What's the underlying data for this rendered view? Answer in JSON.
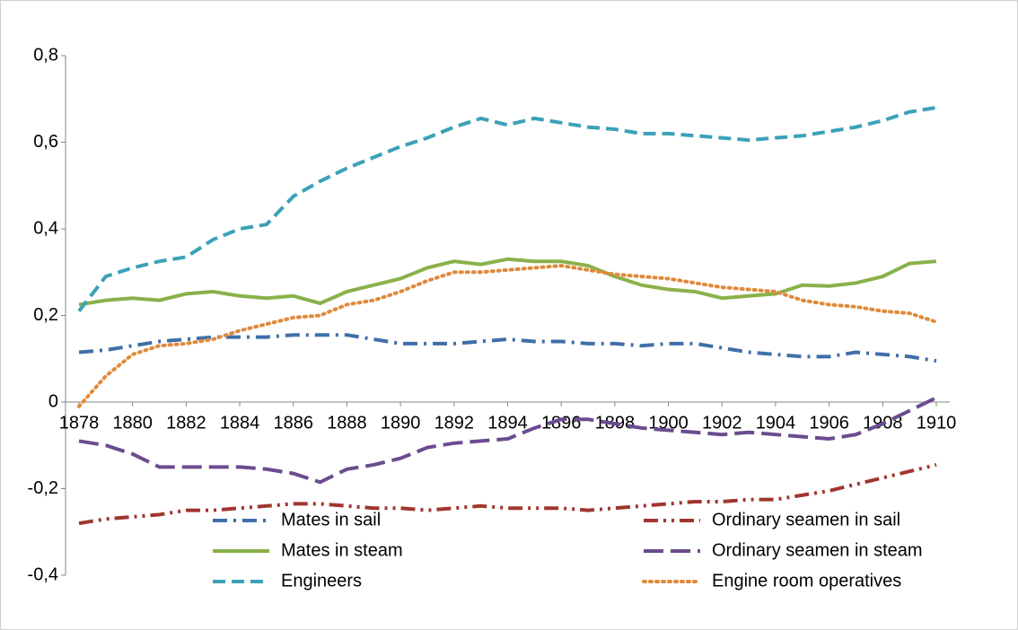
{
  "chart_data": {
    "type": "line",
    "x": [
      1878,
      1879,
      1880,
      1881,
      1882,
      1883,
      1884,
      1885,
      1886,
      1887,
      1888,
      1889,
      1890,
      1891,
      1892,
      1893,
      1894,
      1895,
      1896,
      1897,
      1898,
      1899,
      1900,
      1901,
      1902,
      1903,
      1904,
      1905,
      1906,
      1907,
      1908,
      1909,
      1910
    ],
    "xlim": [
      1878,
      1910
    ],
    "xticks": [
      1878,
      1880,
      1882,
      1884,
      1886,
      1888,
      1890,
      1892,
      1894,
      1896,
      1898,
      1900,
      1902,
      1904,
      1906,
      1908,
      1910
    ],
    "ylim": [
      -0.4,
      0.8
    ],
    "yticks": [
      {
        "value": -0.4,
        "label": "-0,4"
      },
      {
        "value": -0.2,
        "label": "-0,2"
      },
      0,
      {
        "value": 0.2,
        "label": "0,2"
      },
      {
        "value": 0.4,
        "label": "0,4"
      },
      {
        "value": 0.6,
        "label": "0,6"
      },
      {
        "value": 0.8,
        "label": "0,8"
      }
    ],
    "legend": "bottom",
    "series": [
      {
        "name": "Mates in sail",
        "color": "#3f6fa8",
        "style": "dash-dot",
        "values": [
          0.115,
          0.12,
          0.13,
          0.14,
          0.145,
          0.15,
          0.15,
          0.15,
          0.155,
          0.155,
          0.155,
          0.145,
          0.135,
          0.135,
          0.135,
          0.14,
          0.145,
          0.14,
          0.14,
          0.135,
          0.135,
          0.13,
          0.135,
          0.135,
          0.125,
          0.115,
          0.11,
          0.105,
          0.105,
          0.115,
          0.11,
          0.105,
          0.095
        ]
      },
      {
        "name": "Ordinary seamen in sail",
        "color": "#a0362f",
        "style": "dash-dot-dot",
        "values": [
          -0.28,
          -0.27,
          -0.265,
          -0.26,
          -0.25,
          -0.25,
          -0.245,
          -0.24,
          -0.235,
          -0.235,
          -0.24,
          -0.245,
          -0.245,
          -0.25,
          -0.245,
          -0.24,
          -0.245,
          -0.245,
          -0.245,
          -0.25,
          -0.245,
          -0.24,
          -0.235,
          -0.23,
          -0.23,
          -0.225,
          -0.225,
          -0.215,
          -0.205,
          -0.19,
          -0.175,
          -0.16,
          -0.145
        ]
      },
      {
        "name": "Mates in steam",
        "color": "#8ab14a",
        "style": "solid",
        "values": [
          0.225,
          0.235,
          0.24,
          0.235,
          0.25,
          0.255,
          0.245,
          0.24,
          0.245,
          0.228,
          0.255,
          0.27,
          0.285,
          0.31,
          0.325,
          0.318,
          0.33,
          0.325,
          0.325,
          0.315,
          0.29,
          0.27,
          0.26,
          0.255,
          0.24,
          0.245,
          0.25,
          0.27,
          0.268,
          0.275,
          0.29,
          0.32,
          0.325
        ]
      },
      {
        "name": "Ordinary seamen in steam",
        "color": "#6b4c8f",
        "style": "long-dash",
        "values": [
          -0.09,
          -0.1,
          -0.12,
          -0.15,
          -0.15,
          -0.15,
          -0.15,
          -0.155,
          -0.165,
          -0.185,
          -0.155,
          -0.145,
          -0.13,
          -0.105,
          -0.095,
          -0.09,
          -0.085,
          -0.06,
          -0.04,
          -0.04,
          -0.05,
          -0.06,
          -0.065,
          -0.07,
          -0.075,
          -0.07,
          -0.075,
          -0.08,
          -0.085,
          -0.075,
          -0.05,
          -0.02,
          0.01
        ]
      },
      {
        "name": "Engineers",
        "color": "#3ba1b8",
        "style": "dash",
        "values": [
          0.21,
          0.29,
          0.31,
          0.325,
          0.335,
          0.375,
          0.4,
          0.41,
          0.475,
          0.51,
          0.54,
          0.565,
          0.59,
          0.61,
          0.635,
          0.655,
          0.64,
          0.655,
          0.645,
          0.635,
          0.63,
          0.62,
          0.62,
          0.615,
          0.61,
          0.605,
          0.61,
          0.615,
          0.625,
          0.635,
          0.65,
          0.67,
          0.68
        ]
      },
      {
        "name": "Engine room operatives",
        "color": "#e08a3c",
        "style": "dot",
        "values": [
          -0.01,
          0.06,
          0.11,
          0.13,
          0.135,
          0.145,
          0.165,
          0.18,
          0.195,
          0.2,
          0.225,
          0.235,
          0.255,
          0.28,
          0.3,
          0.3,
          0.305,
          0.31,
          0.315,
          0.305,
          0.295,
          0.29,
          0.285,
          0.275,
          0.265,
          0.26,
          0.255,
          0.235,
          0.225,
          0.22,
          0.21,
          0.205,
          0.185
        ]
      }
    ]
  }
}
